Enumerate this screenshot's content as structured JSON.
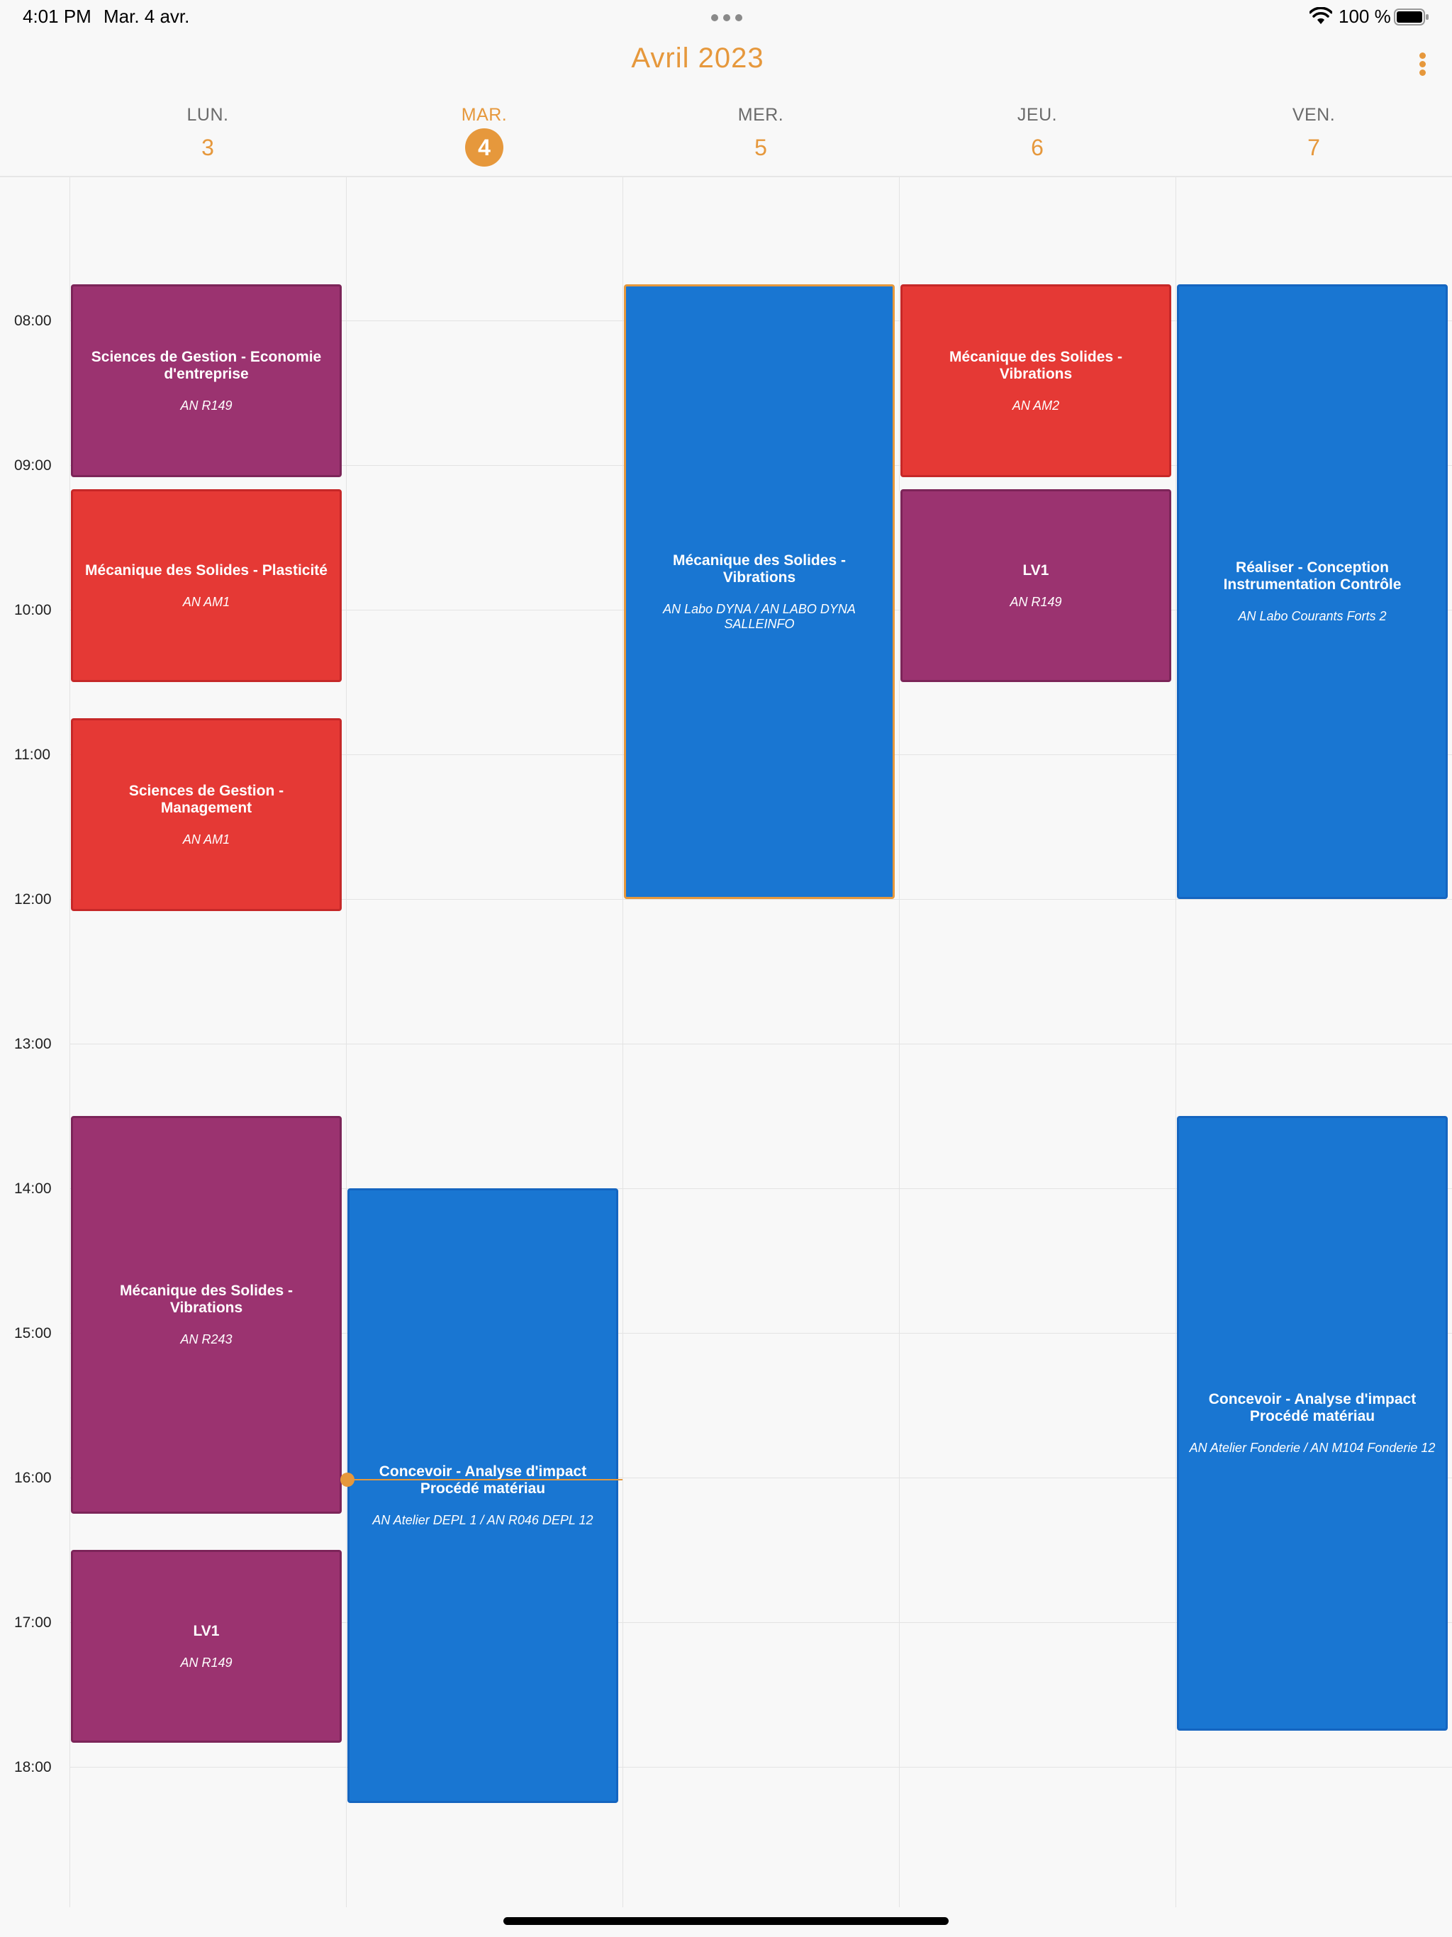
{
  "status_bar": {
    "time": "4:01 PM",
    "date": "Mar. 4 avr.",
    "battery": "100 %"
  },
  "header": {
    "title": "Avril 2023",
    "menu_icon": "more-vertical-icon"
  },
  "days": [
    {
      "name": "LUN.",
      "number": "3",
      "today": false
    },
    {
      "name": "MAR.",
      "number": "4",
      "today": true
    },
    {
      "name": "MER.",
      "number": "5",
      "today": false
    },
    {
      "name": "JEU.",
      "number": "6",
      "today": false
    },
    {
      "name": "VEN.",
      "number": "7",
      "today": false
    }
  ],
  "hours": [
    "08:00",
    "09:00",
    "10:00",
    "11:00",
    "12:00",
    "13:00",
    "14:00",
    "15:00",
    "16:00",
    "17:00",
    "18:00"
  ],
  "events": [
    {
      "day": 0,
      "start": "07:45",
      "end": "09:05",
      "title": "Sciences de Gestion - Economie d'entreprise",
      "room": "AN R149",
      "color": "purple"
    },
    {
      "day": 0,
      "start": "09:10",
      "end": "10:30",
      "title": "Mécanique des Solides - Plasticité",
      "room": "AN AM1",
      "color": "red"
    },
    {
      "day": 0,
      "start": "10:45",
      "end": "12:05",
      "title": "Sciences de Gestion - Management",
      "room": "AN AM1",
      "color": "red"
    },
    {
      "day": 0,
      "start": "13:30",
      "end": "16:15",
      "title": "Mécanique des Solides - Vibrations",
      "room": "AN R243",
      "color": "purple"
    },
    {
      "day": 0,
      "start": "16:30",
      "end": "17:50",
      "title": "LV1",
      "room": "AN R149",
      "color": "purple"
    },
    {
      "day": 1,
      "start": "14:00",
      "end": "18:15",
      "title": "Concevoir - Analyse d'impact Procédé matériau",
      "room": "AN Atelier DEPL 1 / AN R046 DEPL 12",
      "color": "blue"
    },
    {
      "day": 2,
      "start": "07:45",
      "end": "12:00",
      "title": "Mécanique des Solides - Vibrations",
      "room": "AN Labo DYNA / AN LABO DYNA SALLEINFO",
      "color": "blue",
      "selected": true
    },
    {
      "day": 3,
      "start": "07:45",
      "end": "09:05",
      "title": "Mécanique des Solides - Vibrations",
      "room": "AN AM2",
      "color": "red"
    },
    {
      "day": 3,
      "start": "09:10",
      "end": "10:30",
      "title": "LV1",
      "room": "AN R149",
      "color": "purple"
    },
    {
      "day": 4,
      "start": "07:45",
      "end": "12:00",
      "title": "Réaliser - Conception Instrumentation Contrôle",
      "room": "AN Labo Courants Forts 2",
      "color": "blue"
    },
    {
      "day": 4,
      "start": "13:30",
      "end": "17:45",
      "title": "Concevoir - Analyse d'impact Procédé matériau",
      "room": "AN Atelier Fonderie / AN M104 Fonderie 12",
      "color": "blue"
    }
  ],
  "now": {
    "day": 1,
    "time": "16:01"
  }
}
